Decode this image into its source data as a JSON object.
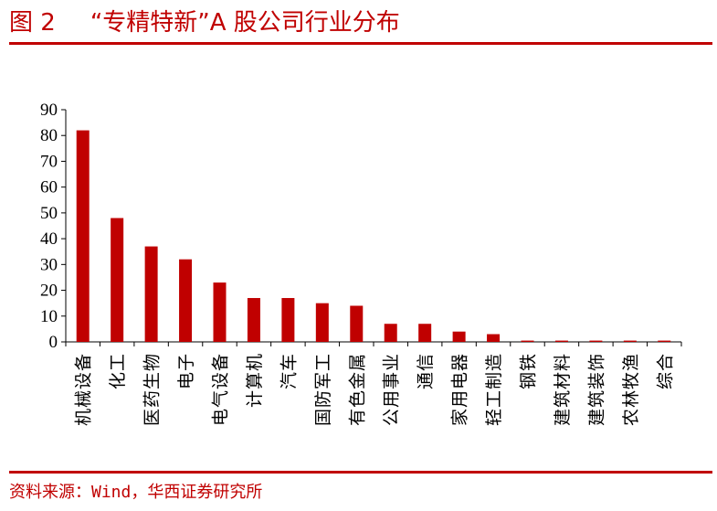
{
  "figure": {
    "number": "图 2",
    "title": "“专精特新”A 股公司行业分布",
    "source": "资料来源：Wind，华西证券研究所"
  },
  "colors": {
    "accent": "#c00000",
    "bar": "#c00000",
    "axis": "#000000"
  },
  "chart_data": {
    "type": "bar",
    "title": "",
    "xlabel": "",
    "ylabel": "",
    "ylim": [
      0,
      90
    ],
    "yticks": [
      0,
      10,
      20,
      30,
      40,
      50,
      60,
      70,
      80,
      90
    ],
    "grid": false,
    "legend": "none",
    "categories": [
      "机械设备",
      "化工",
      "医药生物",
      "电子",
      "电气设备",
      "计算机",
      "汽车",
      "国防军工",
      "有色金属",
      "公用事业",
      "通信",
      "家用电器",
      "轻工制造",
      "钢铁",
      "建筑材料",
      "建筑装饰",
      "农林牧渔",
      "综合"
    ],
    "values": [
      82,
      48,
      37,
      32,
      23,
      17,
      17,
      15,
      14,
      7,
      7,
      4,
      3,
      0.5,
      0.5,
      0.5,
      0.5,
      0.5
    ]
  }
}
